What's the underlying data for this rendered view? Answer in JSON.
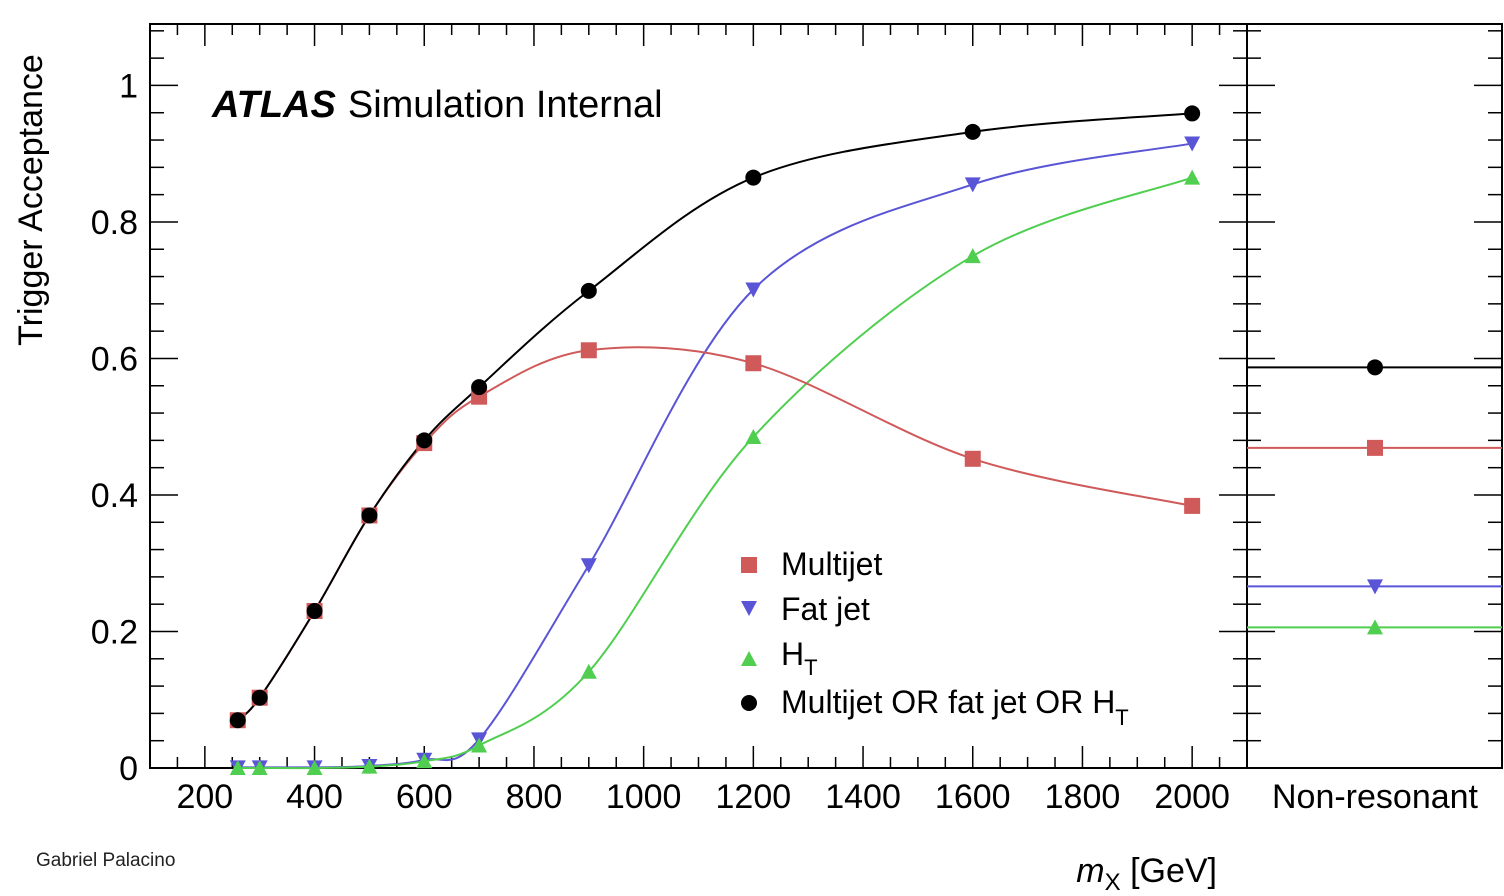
{
  "chart_data": {
    "type": "line",
    "ylabel": "Trigger Acceptance",
    "xlabel_var": "m",
    "xlabel_sub": "X",
    "xlabel_unit": " [GeV]",
    "xlim": [
      100,
      2100
    ],
    "ylim": [
      0,
      1.09
    ],
    "x_ticks": [
      200,
      400,
      600,
      800,
      1000,
      1200,
      1400,
      1600,
      1800,
      2000
    ],
    "x_tick_labels": [
      "200",
      "400",
      "600",
      "800",
      "1000",
      "1200",
      "1400",
      "1600",
      "1800",
      "2000"
    ],
    "y_ticks": [
      0,
      0.2,
      0.4,
      0.6,
      0.8,
      1
    ],
    "y_tick_labels": [
      "0",
      "0.2",
      "0.4",
      "0.6",
      "0.8",
      "1"
    ],
    "extra_category_label": "Non-resonant",
    "atlas_label": {
      "bold": "ATLAS",
      "rest": "Simulation Internal"
    },
    "legend_position": "center-right",
    "series": [
      {
        "name": "Multijet",
        "marker": "square",
        "color": "#d05a5a",
        "x": [
          260,
          300,
          400,
          500,
          600,
          700,
          900,
          1200,
          1600,
          2000
        ],
        "y": [
          0.07,
          0.103,
          0.23,
          0.37,
          0.476,
          0.544,
          0.612,
          0.593,
          0.453,
          0.384
        ],
        "non_resonant": 0.469
      },
      {
        "name": "Fat jet",
        "marker": "triangle-down",
        "color": "#5a55d6",
        "x": [
          260,
          300,
          400,
          500,
          600,
          700,
          900,
          1200,
          1600,
          2000
        ],
        "y": [
          0.001,
          0.001,
          0.001,
          0.003,
          0.012,
          0.042,
          0.297,
          0.701,
          0.855,
          0.915
        ],
        "non_resonant": 0.266
      },
      {
        "name": "H",
        "name_sub": "T",
        "marker": "triangle-up",
        "color": "#4fce4f",
        "x": [
          260,
          300,
          400,
          500,
          600,
          700,
          900,
          1200,
          1600,
          2000
        ],
        "y": [
          0.0,
          0.0,
          0.0,
          0.002,
          0.01,
          0.033,
          0.141,
          0.485,
          0.75,
          0.865
        ],
        "non_resonant": 0.206
      },
      {
        "name": "Multijet OR fat jet OR H",
        "name_sub": "T",
        "marker": "circle",
        "color": "#000000",
        "x": [
          260,
          300,
          400,
          500,
          600,
          700,
          900,
          1200,
          1600,
          2000
        ],
        "y": [
          0.07,
          0.103,
          0.23,
          0.37,
          0.48,
          0.558,
          0.699,
          0.865,
          0.932,
          0.959
        ],
        "non_resonant": 0.587
      }
    ]
  },
  "author_label": "Gabriel Palacino"
}
